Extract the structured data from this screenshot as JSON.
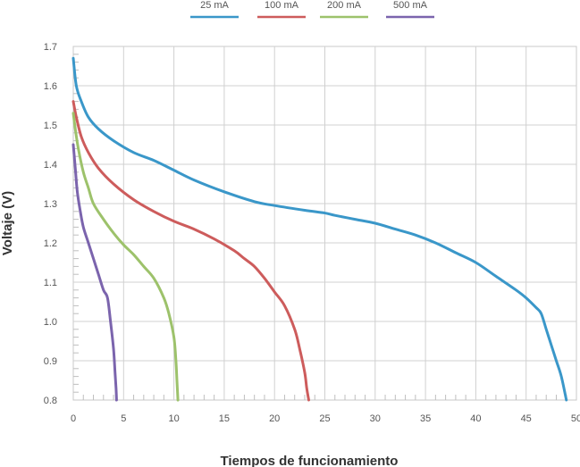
{
  "chart_data": {
    "type": "line",
    "title": "",
    "xlabel": "Tiempos de funcionamiento",
    "ylabel": "Voltaje (V)",
    "xlim": [
      0,
      50
    ],
    "ylim": [
      0.8,
      1.7
    ],
    "xticks": [
      "0",
      "5",
      "10",
      "15",
      "20",
      "25",
      "30",
      "35",
      "40",
      "45",
      "50"
    ],
    "yticks": [
      "0.8",
      "0.9",
      "1.0",
      "1.1",
      "1.2",
      "1.3",
      "1.4",
      "1.5",
      "1.6",
      "1.7"
    ],
    "grid": true,
    "legend_position": "top-center",
    "series": [
      {
        "name": "25 mA",
        "color": "#3a97c9",
        "x": [
          0,
          0.3,
          0.8,
          1.5,
          2.5,
          4,
          6,
          8,
          10,
          12,
          15,
          18,
          20,
          23,
          25,
          26,
          28,
          30,
          32,
          34,
          36,
          38,
          40,
          42,
          44,
          45,
          46,
          46.5,
          47,
          47.5,
          48,
          48.5,
          49
        ],
        "y": [
          1.67,
          1.6,
          1.56,
          1.52,
          1.49,
          1.46,
          1.43,
          1.41,
          1.385,
          1.36,
          1.33,
          1.305,
          1.295,
          1.283,
          1.276,
          1.27,
          1.26,
          1.25,
          1.235,
          1.22,
          1.2,
          1.175,
          1.15,
          1.115,
          1.08,
          1.06,
          1.035,
          1.02,
          0.98,
          0.94,
          0.9,
          0.86,
          0.8
        ]
      },
      {
        "name": "100 mA",
        "color": "#cd5c5c",
        "x": [
          0,
          0.3,
          0.8,
          1.5,
          2.5,
          4,
          6,
          8,
          10,
          12,
          14,
          16,
          17,
          18,
          19,
          20,
          21,
          22,
          22.5,
          23,
          23.2,
          23.4
        ],
        "y": [
          1.56,
          1.52,
          1.47,
          1.43,
          1.39,
          1.35,
          1.31,
          1.28,
          1.255,
          1.235,
          1.21,
          1.18,
          1.16,
          1.14,
          1.11,
          1.075,
          1.04,
          0.98,
          0.93,
          0.87,
          0.83,
          0.8
        ]
      },
      {
        "name": "200 mA",
        "color": "#9dc26b",
        "x": [
          0,
          0.2,
          0.5,
          1,
          1.5,
          2,
          3,
          4,
          5,
          6,
          7,
          8,
          9,
          9.5,
          10,
          10.2,
          10.3,
          10.4
        ],
        "y": [
          1.53,
          1.49,
          1.44,
          1.38,
          1.34,
          1.3,
          1.26,
          1.225,
          1.195,
          1.17,
          1.14,
          1.11,
          1.06,
          1.02,
          0.96,
          0.9,
          0.85,
          0.8
        ]
      },
      {
        "name": "500 mA",
        "color": "#7b64ad",
        "x": [
          0,
          0.2,
          0.4,
          0.7,
          1,
          1.5,
          2,
          2.5,
          3,
          3.4,
          3.7,
          4,
          4.15,
          4.25,
          4.3
        ],
        "y": [
          1.45,
          1.39,
          1.33,
          1.28,
          1.24,
          1.2,
          1.16,
          1.12,
          1.08,
          1.06,
          1.0,
          0.93,
          0.87,
          0.83,
          0.8
        ]
      }
    ]
  }
}
